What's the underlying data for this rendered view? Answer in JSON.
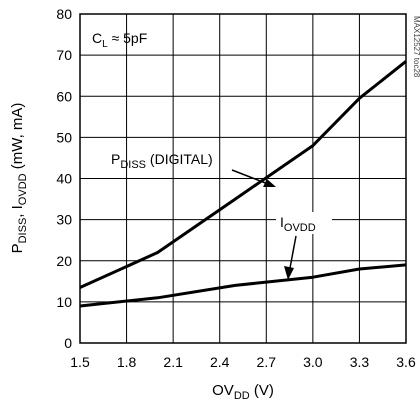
{
  "chart_data": {
    "type": "line",
    "xlabel_main": "OV",
    "xlabel_sub": "DD",
    "xlabel_unit": " (V)",
    "ylabel_main": "P",
    "ylabel_sub1": "DISS",
    "ylabel_mid": ", I",
    "ylabel_sub2": "OVDD",
    "ylabel_unit": " (mW, mA)",
    "xlim": [
      1.5,
      3.6
    ],
    "ylim": [
      0,
      80
    ],
    "xticks": [
      "1.5",
      "1.8",
      "2.1",
      "2.4",
      "2.7",
      "3.0",
      "3.3",
      "3.6"
    ],
    "yticks": [
      "0",
      "10",
      "20",
      "30",
      "40",
      "50",
      "60",
      "70",
      "80"
    ],
    "grid": true,
    "condition": {
      "prefix": "C",
      "sub": "L",
      "text": " ≈ 5pF"
    },
    "watermark": "MAX12527 toc28",
    "series": [
      {
        "label_main": "P",
        "label_sub": "DISS",
        "label_suffix": " (DIGITAL)",
        "x": [
          1.5,
          2.0,
          2.5,
          3.0,
          3.3,
          3.6
        ],
        "y": [
          13.5,
          22,
          35,
          48,
          59.5,
          68.5
        ]
      },
      {
        "label_main": "I",
        "label_sub": "OVDD",
        "label_suffix": "",
        "x": [
          1.5,
          2.0,
          2.5,
          3.0,
          3.3,
          3.6
        ],
        "y": [
          9,
          11,
          14,
          16,
          18,
          19
        ]
      }
    ]
  }
}
